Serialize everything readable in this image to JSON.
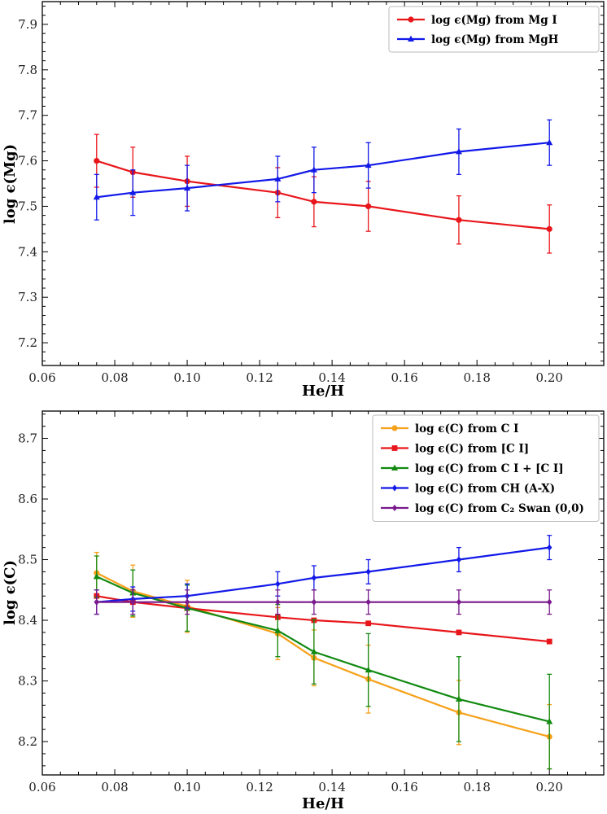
{
  "chart_data": [
    {
      "type": "line",
      "xlabel": "He/H",
      "ylabel": "log ϵ(Mg)",
      "xlim": [
        0.06,
        0.215
      ],
      "ylim": [
        7.15,
        7.95
      ],
      "xticks": [
        "0.06",
        "0.08",
        "0.10",
        "0.12",
        "0.14",
        "0.16",
        "0.18",
        "0.20"
      ],
      "yticks": [
        "7.2",
        "7.3",
        "7.4",
        "7.5",
        "7.6",
        "7.7",
        "7.8",
        "7.9"
      ],
      "legend_position": "top-right",
      "x": [
        0.075,
        0.085,
        0.1,
        0.125,
        0.135,
        0.15,
        0.175,
        0.2
      ],
      "series": [
        {
          "name": "log ϵ(Mg) from Mg I",
          "color": "#e8161b",
          "marker": "circle",
          "values": [
            7.6,
            7.575,
            7.555,
            7.53,
            7.51,
            7.5,
            7.47,
            7.45
          ],
          "errors": [
            0.058,
            0.055,
            0.055,
            0.055,
            0.055,
            0.055,
            0.053,
            0.053
          ]
        },
        {
          "name": "log ϵ(Mg) from MgH",
          "color": "#1219e8",
          "marker": "triangle",
          "values": [
            7.52,
            7.53,
            7.54,
            7.56,
            7.58,
            7.59,
            7.62,
            7.64
          ],
          "errors": [
            0.05,
            0.05,
            0.05,
            0.05,
            0.05,
            0.05,
            0.05,
            0.05
          ]
        }
      ]
    },
    {
      "type": "line",
      "xlabel": "He/H",
      "ylabel": "log ϵ(C)",
      "xlim": [
        0.06,
        0.215
      ],
      "ylim": [
        8.145,
        8.745
      ],
      "xticks": [
        "0.06",
        "0.08",
        "0.10",
        "0.12",
        "0.14",
        "0.16",
        "0.18",
        "0.20"
      ],
      "yticks": [
        "8.2",
        "8.3",
        "8.4",
        "8.5",
        "8.6",
        "8.7"
      ],
      "legend_position": "top-right",
      "x": [
        0.075,
        0.085,
        0.1,
        0.125,
        0.135,
        0.15,
        0.175,
        0.2
      ],
      "series": [
        {
          "name": "log ϵ(C) from C I",
          "color": "#f5a11a",
          "marker": "circle",
          "values": [
            8.478,
            8.448,
            8.423,
            8.378,
            8.338,
            8.303,
            8.248,
            8.208
          ],
          "errors": [
            0.034,
            0.043,
            0.043,
            0.043,
            0.046,
            0.056,
            0.053,
            0.053
          ]
        },
        {
          "name": "log ϵ(C) from [C I]",
          "color": "#e8161b",
          "marker": "square",
          "values": [
            8.44,
            8.43,
            8.42,
            8.405,
            8.4,
            8.395,
            8.38,
            8.365
          ],
          "errors": [
            0.0,
            0.0,
            0.0,
            0.0,
            0.0,
            0.0,
            0.0,
            0.0
          ]
        },
        {
          "name": "log ϵ(C) from C I + [C I]",
          "color": "#128a12",
          "marker": "triangle",
          "values": [
            8.472,
            8.445,
            8.42,
            8.383,
            8.348,
            8.318,
            8.27,
            8.233
          ],
          "errors": [
            0.034,
            0.038,
            0.038,
            0.043,
            0.053,
            0.06,
            0.07,
            0.078
          ]
        },
        {
          "name": "log ϵ(C) from CH (A-X)",
          "color": "#1219e8",
          "marker": "diamond",
          "values": [
            8.43,
            8.435,
            8.44,
            8.46,
            8.47,
            8.48,
            8.5,
            8.52
          ],
          "errors": [
            0.02,
            0.02,
            0.02,
            0.02,
            0.02,
            0.02,
            0.02,
            0.02
          ]
        },
        {
          "name": "log ϵ(C) from C₂ Swan (0,0)",
          "color": "#7a1a8c",
          "marker": "diamond",
          "values": [
            8.43,
            8.43,
            8.43,
            8.43,
            8.43,
            8.43,
            8.43,
            8.43
          ],
          "errors": [
            0.02,
            0.02,
            0.02,
            0.02,
            0.02,
            0.02,
            0.02,
            0.02
          ]
        }
      ]
    }
  ]
}
